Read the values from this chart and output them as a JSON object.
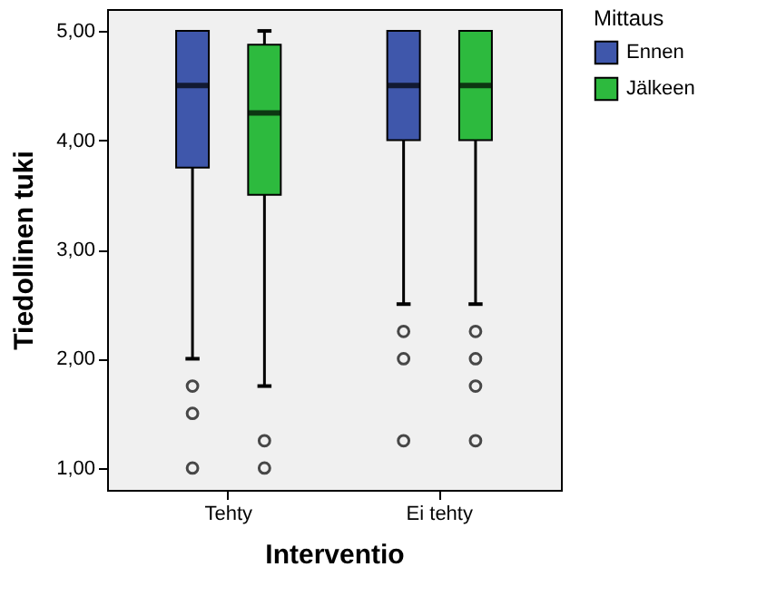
{
  "chart_data": {
    "type": "box",
    "xlabel": "Interventio",
    "ylabel": "Tiedollinen tuki",
    "legend_title": "Mittaus",
    "categories": [
      "Tehty",
      "Ei tehty"
    ],
    "series": [
      {
        "name": "Ennen",
        "color": "#3f57ab",
        "boxes": [
          {
            "low": 2.0,
            "q1": 3.75,
            "median": 4.5,
            "q3": 5.0,
            "high": 5.0,
            "outliers": [
              1.75,
              1.5,
              1.0
            ]
          },
          {
            "low": 2.5,
            "q1": 4.0,
            "median": 4.5,
            "q3": 5.0,
            "high": 5.0,
            "outliers": [
              2.25,
              2.0,
              1.25
            ]
          }
        ]
      },
      {
        "name": "Jälkeen",
        "color": "#2dba3e",
        "boxes": [
          {
            "low": 1.75,
            "q1": 3.5,
            "median": 4.25,
            "q3": 4.875,
            "high": 5.0,
            "outliers": [
              1.25,
              1.0
            ]
          },
          {
            "low": 2.5,
            "q1": 4.0,
            "median": 4.5,
            "q3": 5.0,
            "high": 5.0,
            "outliers": [
              2.25,
              2.0,
              1.75,
              1.25
            ]
          }
        ]
      }
    ],
    "ylim": [
      0.8,
      5.2
    ],
    "yticks": [
      {
        "value": 1,
        "label": "1,00"
      },
      {
        "value": 2,
        "label": "2,00"
      },
      {
        "value": 3,
        "label": "3,00"
      },
      {
        "value": 4,
        "label": "4,00"
      },
      {
        "value": 5,
        "label": "5,00"
      }
    ],
    "grid": false,
    "legend": "top right"
  }
}
